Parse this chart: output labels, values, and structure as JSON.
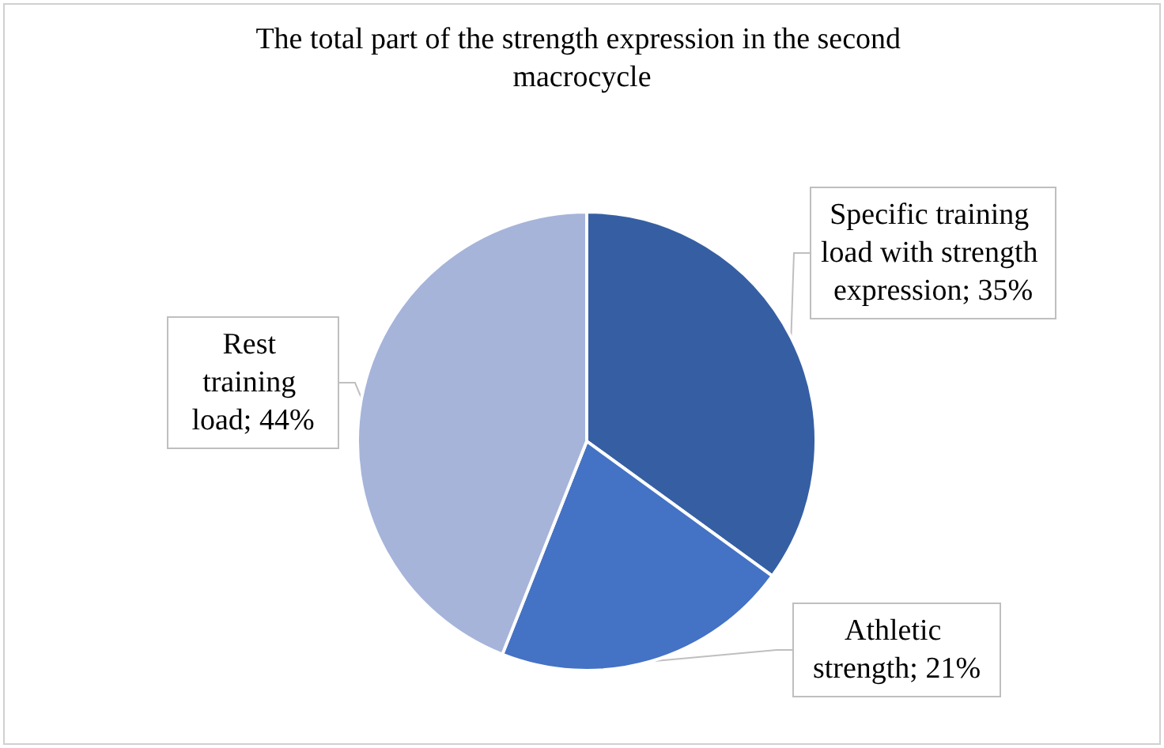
{
  "chart_data": {
    "type": "pie",
    "title": "The total part of the strength expression in the second macrocycle",
    "categories": [
      "Specific training load with strength expression",
      "Athletic strength",
      "Rest training load"
    ],
    "values": [
      35,
      21,
      44
    ],
    "value_labels": [
      "35%",
      "21%",
      "44%"
    ],
    "colors": [
      "#365fa3",
      "#4472c4",
      "#a6b4da"
    ],
    "legend": false
  }
}
